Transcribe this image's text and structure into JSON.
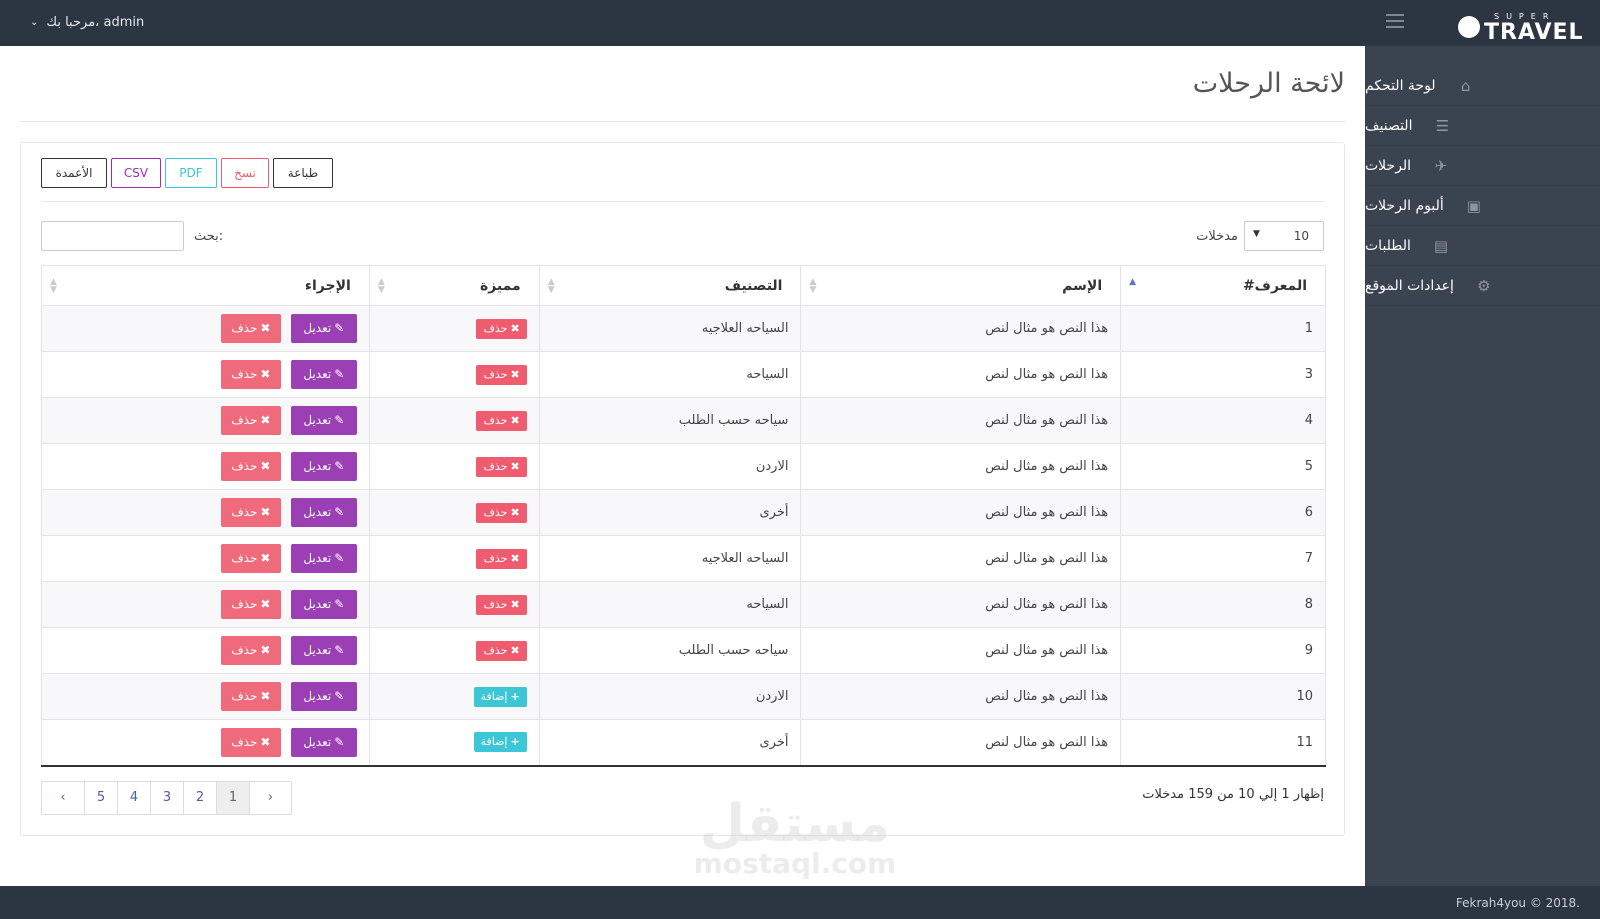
{
  "topbar": {
    "user_greeting": "مرحبا بك، admin",
    "logo_super": "SUPER",
    "logo_travel": "TRAVEL"
  },
  "sidebar": {
    "items": [
      {
        "label": "لوحة التحكم",
        "icon": "home-icon",
        "has_caret": false
      },
      {
        "label": "التصنيف",
        "icon": "list-icon",
        "has_caret": false
      },
      {
        "label": "الرحلات",
        "icon": "plane-icon",
        "has_caret": true
      },
      {
        "label": "ألبوم الرحلات",
        "icon": "image-icon",
        "has_caret": true
      },
      {
        "label": "الطلبات",
        "icon": "cart-icon",
        "has_caret": false
      },
      {
        "label": "إعدادات الموقع",
        "icon": "gears-icon",
        "has_caret": true
      }
    ]
  },
  "page": {
    "title": "لائحة الرحلات"
  },
  "toolbar": {
    "columns": "الأعمدة",
    "csv": "CSV",
    "pdf": "PDF",
    "copy": "نسخ",
    "print": "طباعة"
  },
  "length": {
    "value": "10",
    "label": "مدخلات"
  },
  "search": {
    "label": "بحث:",
    "value": ""
  },
  "table": {
    "headers": {
      "id": "المعرف#",
      "name": "الإسم",
      "category": "التصنيف",
      "featured": "مميزة",
      "action": "الإجراء"
    },
    "edit_label": "تعديل",
    "delete_label": "حذف",
    "add_label": "إضافة",
    "rows": [
      {
        "id": "1",
        "name": "هذا النص هو مثال لنص",
        "category": "السياحه العلاجيه",
        "featured": "حذف",
        "featured_type": "delete"
      },
      {
        "id": "3",
        "name": "هذا النص هو مثال لنص",
        "category": "السياحه",
        "featured": "حذف",
        "featured_type": "delete"
      },
      {
        "id": "4",
        "name": "هذا النص هو مثال لنص",
        "category": "سياحه حسب الطلب",
        "featured": "حذف",
        "featured_type": "delete"
      },
      {
        "id": "5",
        "name": "هذا النص هو مثال لنص",
        "category": "الاردن",
        "featured": "حذف",
        "featured_type": "delete"
      },
      {
        "id": "6",
        "name": "هذا النص هو مثال لنص",
        "category": "أخرى",
        "featured": "حذف",
        "featured_type": "delete"
      },
      {
        "id": "7",
        "name": "هذا النص هو مثال لنص",
        "category": "السياحه العلاجيه",
        "featured": "حذف",
        "featured_type": "delete"
      },
      {
        "id": "8",
        "name": "هذا النص هو مثال لنص",
        "category": "السياحه",
        "featured": "حذف",
        "featured_type": "delete"
      },
      {
        "id": "9",
        "name": "هذا النص هو مثال لنص",
        "category": "سياحه حسب الطلب",
        "featured": "حذف",
        "featured_type": "delete"
      },
      {
        "id": "10",
        "name": "هذا النص هو مثال لنص",
        "category": "الاردن",
        "featured": "إضافة",
        "featured_type": "add"
      },
      {
        "id": "11",
        "name": "هذا النص هو مثال لنص",
        "category": "أخرى",
        "featured": "إضافة",
        "featured_type": "add"
      }
    ]
  },
  "pagination": {
    "info": "إظهار 1 إلي 10 من 159 مدخلات",
    "prev": "‹",
    "next": "›",
    "pages": [
      "1",
      "2",
      "3",
      "4",
      "5"
    ],
    "active": "1"
  },
  "watermark": {
    "line1": "مستقل",
    "line2": "mostaql.com"
  },
  "footer": {
    "copyright": "Fekrah4you © 2018."
  },
  "colors": {
    "topbar": "#2c3542",
    "sidebar": "#3a4350",
    "edit": "#9b3fb5",
    "delete": "#ef5b6f",
    "add": "#3cc6d6"
  }
}
